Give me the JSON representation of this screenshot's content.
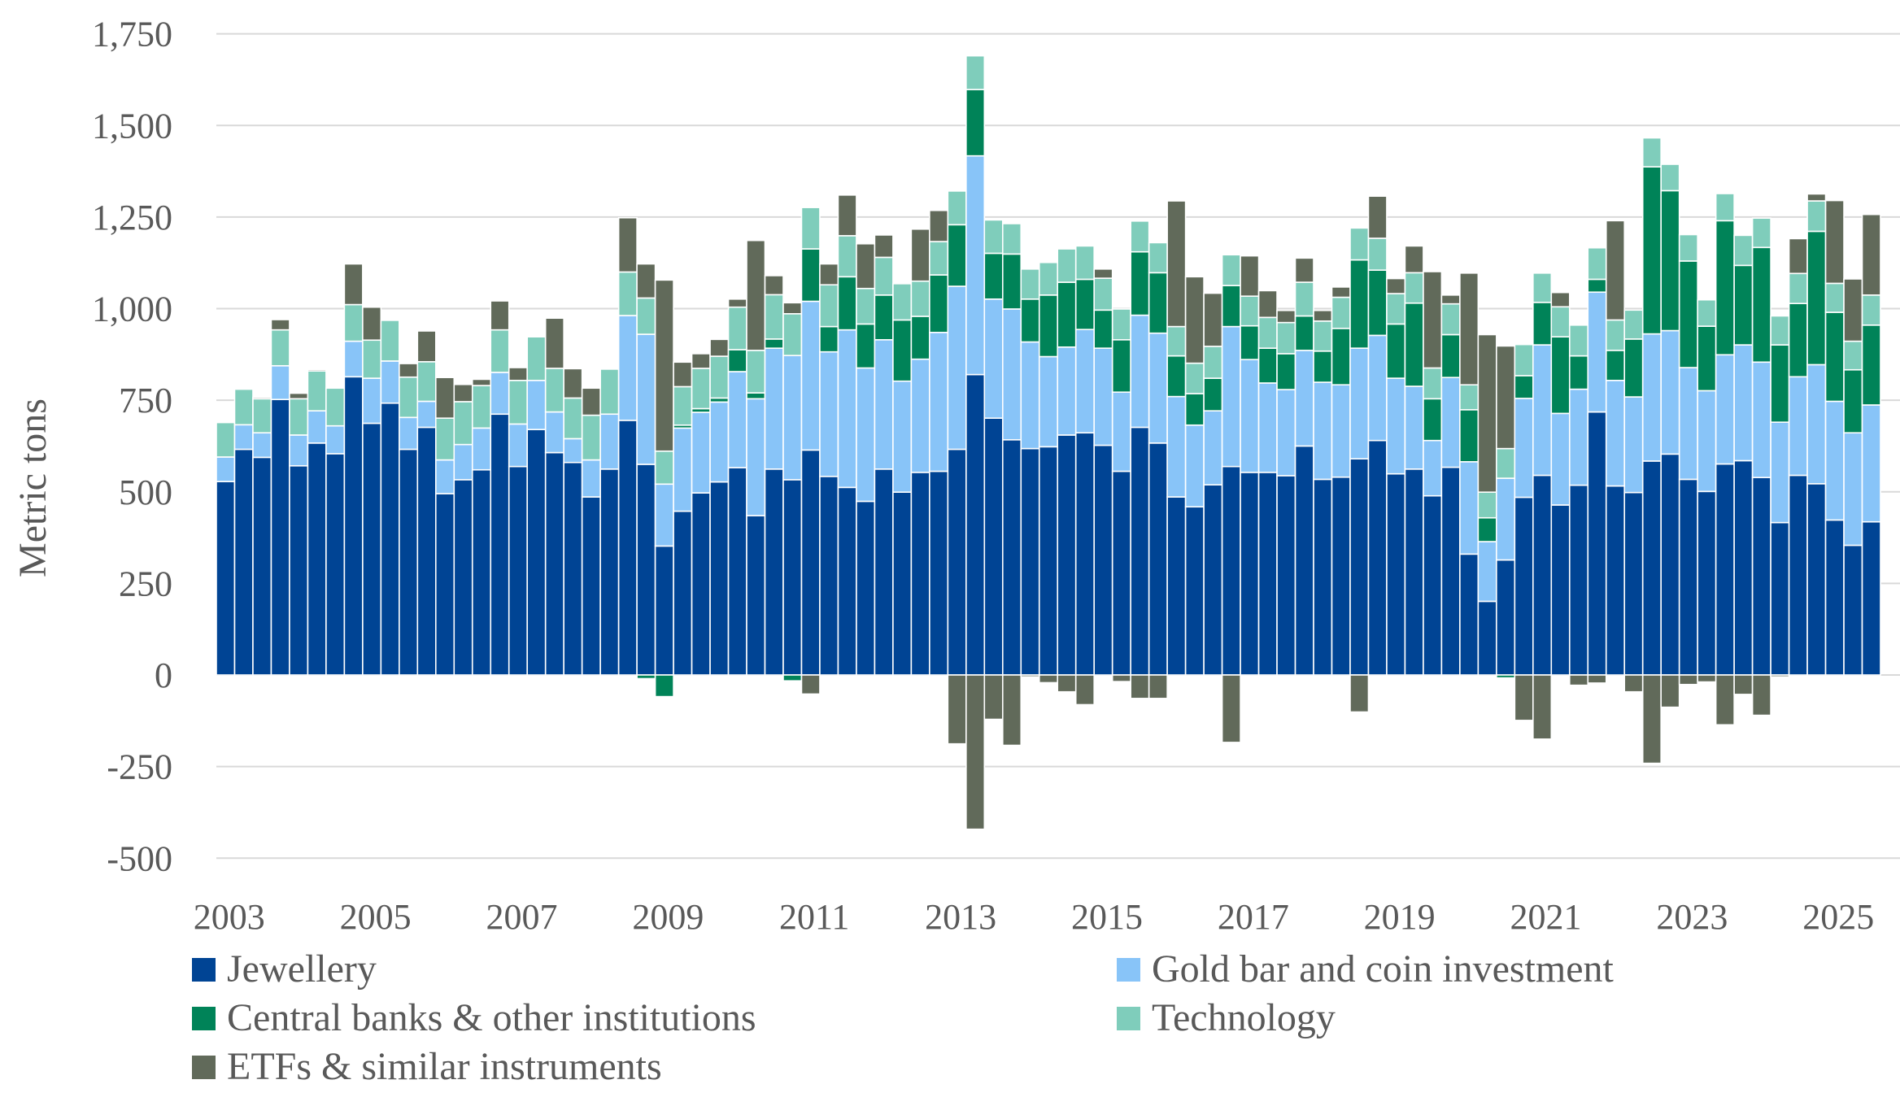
{
  "chart_data": {
    "type": "bar",
    "stacked": true,
    "title": "",
    "xlabel": "",
    "ylabel": "Metric tons",
    "ylim": [
      -500,
      1750
    ],
    "yticks": [
      -500,
      -250,
      0,
      250,
      500,
      750,
      1000,
      1250,
      1500,
      1750
    ],
    "ytick_labels": [
      "-500",
      "-250",
      "0",
      "250",
      "500",
      "750",
      "1,000",
      "1,250",
      "1,500",
      "1,750"
    ],
    "xtick_labels": [
      "2003",
      "2005",
      "2007",
      "2009",
      "2011",
      "2013",
      "2015",
      "2017",
      "2019",
      "2021",
      "2023",
      "2025"
    ],
    "grid": true,
    "legend_position": "bottom",
    "categories": [
      "2003Q1",
      "2003Q2",
      "2003Q3",
      "2003Q4",
      "2004Q1",
      "2004Q2",
      "2004Q3",
      "2004Q4",
      "2005Q1",
      "2005Q2",
      "2005Q3",
      "2005Q4",
      "2006Q1",
      "2006Q2",
      "2006Q3",
      "2006Q4",
      "2007Q1",
      "2007Q2",
      "2007Q3",
      "2007Q4",
      "2008Q1",
      "2008Q2",
      "2008Q3",
      "2008Q4",
      "2009Q1",
      "2009Q2",
      "2009Q3",
      "2009Q4",
      "2010Q1",
      "2010Q2",
      "2010Q3",
      "2010Q4",
      "2011Q1",
      "2011Q2",
      "2011Q3",
      "2011Q4",
      "2012Q1",
      "2012Q2",
      "2012Q3",
      "2012Q4",
      "2013Q1",
      "2013Q2",
      "2013Q3",
      "2013Q4",
      "2014Q1",
      "2014Q2",
      "2014Q3",
      "2014Q4",
      "2015Q1",
      "2015Q2",
      "2015Q3",
      "2015Q4",
      "2016Q1",
      "2016Q2",
      "2016Q3",
      "2016Q4",
      "2017Q1",
      "2017Q2",
      "2017Q3",
      "2017Q4",
      "2018Q1",
      "2018Q2",
      "2018Q3",
      "2018Q4",
      "2019Q1",
      "2019Q2",
      "2019Q3",
      "2019Q4",
      "2020Q1",
      "2020Q2",
      "2020Q3",
      "2020Q4",
      "2021Q1",
      "2021Q2",
      "2021Q3",
      "2021Q4",
      "2022Q1",
      "2022Q2",
      "2022Q3",
      "2022Q4",
      "2023Q1",
      "2023Q2",
      "2023Q3",
      "2023Q4",
      "2024Q1",
      "2024Q2",
      "2024Q3",
      "2024Q4",
      "2025Q1",
      "2025Q2",
      "2025Q3"
    ],
    "series": [
      {
        "name": "Jewellery",
        "color": "#004494",
        "values": [
          528,
          616,
          594,
          752,
          571,
          633,
          604,
          814,
          687,
          742,
          616,
          676,
          495,
          533,
          560,
          712,
          569,
          670,
          607,
          580,
          486,
          562,
          695,
          575,
          352,
          447,
          497,
          527,
          566,
          435,
          562,
          533,
          614,
          542,
          512,
          474,
          562,
          499,
          553,
          556,
          616,
          820,
          701,
          642,
          618,
          623,
          655,
          661,
          627,
          556,
          676,
          633,
          486,
          459,
          519,
          569,
          553,
          553,
          544,
          625,
          534,
          540,
          590,
          640,
          549,
          562,
          489,
          567,
          330,
          201,
          314,
          485,
          545,
          464,
          518,
          718,
          516,
          498,
          584,
          603,
          534,
          501,
          576,
          585,
          539,
          416,
          545,
          522,
          423,
          354,
          418
        ]
      },
      {
        "name": "Gold bar and coin investment",
        "color": "#88C4F8",
        "values": [
          67,
          67,
          67,
          92,
          84,
          88,
          76,
          97,
          123,
          115,
          87,
          71,
          92,
          96,
          114,
          114,
          116,
          134,
          111,
          65,
          101,
          150,
          286,
          355,
          169,
          227,
          220,
          218,
          262,
          319,
          330,
          339,
          406,
          340,
          430,
          364,
          353,
          303,
          309,
          379,
          445,
          597,
          325,
          357,
          291,
          246,
          240,
          282,
          265,
          216,
          306,
          300,
          274,
          223,
          202,
          382,
          308,
          244,
          235,
          261,
          265,
          252,
          302,
          287,
          261,
          226,
          151,
          245,
          252,
          163,
          223,
          270,
          356,
          250,
          262,
          327,
          288,
          261,
          347,
          337,
          305,
          275,
          298,
          316,
          315,
          274,
          269,
          325,
          324,
          307,
          319
        ]
      },
      {
        "name": "Central banks & other institutions",
        "color": "#008358",
        "values": [
          0,
          0,
          0,
          0,
          0,
          0,
          0,
          0,
          0,
          0,
          0,
          0,
          0,
          0,
          0,
          0,
          0,
          0,
          0,
          0,
          0,
          0,
          0,
          -10,
          -59,
          8,
          10,
          11,
          60,
          16,
          25,
          -16,
          143,
          69,
          145,
          120,
          122,
          167,
          117,
          157,
          168,
          181,
          125,
          150,
          117,
          168,
          177,
          137,
          104,
          143,
          173,
          165,
          111,
          86,
          89,
          112,
          92,
          95,
          98,
          94,
          85,
          154,
          241,
          178,
          148,
          227,
          114,
          117,
          142,
          65,
          -8,
          62,
          116,
          209,
          91,
          35,
          82,
          158,
          456,
          382,
          291,
          176,
          366,
          217,
          313,
          211,
          200,
          364,
          243,
          172,
          218
        ]
      },
      {
        "name": "Technology",
        "color": "#7FCDBB",
        "values": [
          94,
          97,
          93,
          98,
          99,
          109,
          103,
          100,
          104,
          111,
          110,
          108,
          114,
          117,
          116,
          116,
          119,
          119,
          119,
          111,
          122,
          123,
          119,
          99,
          90,
          105,
          110,
          114,
          116,
          116,
          121,
          114,
          113,
          114,
          112,
          97,
          103,
          99,
          96,
          91,
          92,
          92,
          91,
          83,
          82,
          89,
          91,
          91,
          87,
          84,
          84,
          82,
          80,
          83,
          87,
          84,
          81,
          84,
          85,
          92,
          82,
          85,
          87,
          87,
          83,
          83,
          84,
          84,
          68,
          70,
          81,
          85,
          80,
          82,
          84,
          86,
          83,
          79,
          79,
          72,
          72,
          72,
          74,
          82,
          80,
          79,
          82,
          83,
          79,
          78,
          82
        ]
      },
      {
        "name": "ETFs & similar instruments",
        "color": "#616A5A",
        "values": [
          0,
          0,
          4,
          28,
          15,
          4,
          0,
          111,
          90,
          0,
          37,
          84,
          111,
          47,
          17,
          79,
          35,
          0,
          137,
          80,
          74,
          3,
          148,
          93,
          467,
          67,
          40,
          46,
          22,
          300,
          52,
          30,
          -52,
          57,
          111,
          122,
          61,
          0,
          142,
          85,
          -188,
          -421,
          -121,
          -192,
          -5,
          -21,
          -46,
          -81,
          25,
          -18,
          -64,
          -64,
          343,
          236,
          145,
          -184,
          110,
          73,
          33,
          66,
          29,
          28,
          -101,
          115,
          41,
          73,
          263,
          24,
          305,
          430,
          280,
          -124,
          -175,
          39,
          -28,
          -22,
          271,
          -46,
          -241,
          -88,
          -26,
          -19,
          -136,
          -53,
          -110,
          -5,
          95,
          19,
          226,
          170,
          220
        ]
      }
    ],
    "gridline_color": "#D9D9D9",
    "text_color": "#595959"
  },
  "legend": {
    "items": [
      {
        "label": "Jewellery",
        "color": "#004494"
      },
      {
        "label": "Gold bar and coin investment",
        "color": "#88C4F8"
      },
      {
        "label": "Central banks & other institutions",
        "color": "#008358"
      },
      {
        "label": "Technology",
        "color": "#7FCDBB"
      },
      {
        "label": "ETFs & similar instruments",
        "color": "#616A5A"
      }
    ]
  }
}
